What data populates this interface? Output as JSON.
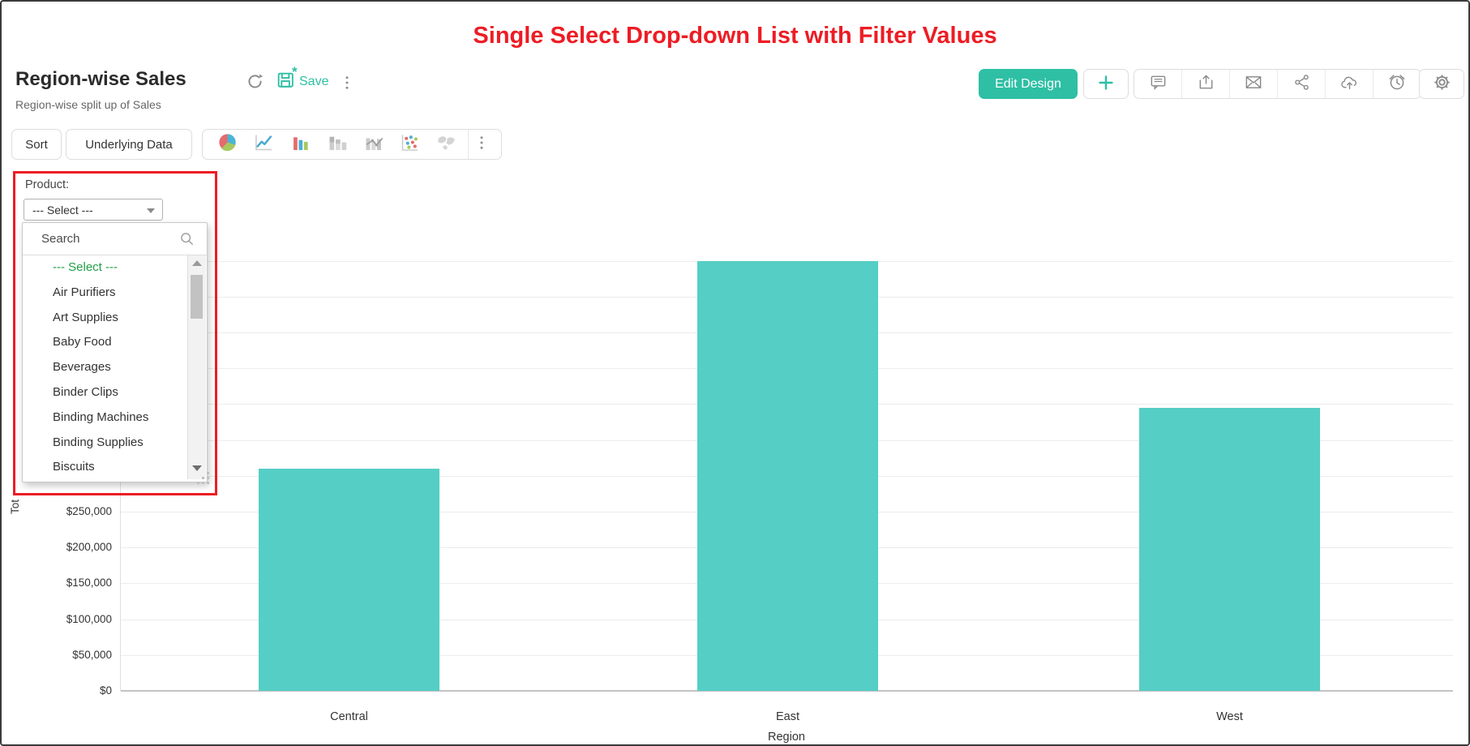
{
  "page_title": "Single Select Drop-down List with Filter Values",
  "header": {
    "title": "Region-wise Sales",
    "subtitle": "Region-wise split up of Sales",
    "save_label": "Save",
    "edit_design_label": "Edit Design",
    "action_icons": [
      "comment-icon",
      "export-icon",
      "mail-icon",
      "share-icon",
      "cloud-upload-icon",
      "alarm-icon"
    ]
  },
  "toolbar": {
    "sort_label": "Sort",
    "underlying_data_label": "Underlying Data",
    "chart_icons": [
      "pie-chart-icon",
      "line-chart-icon",
      "bar-chart-icon",
      "stacked-bar-chart-icon",
      "combo-chart-icon",
      "scatter-chart-icon",
      "map-chart-icon"
    ]
  },
  "filter": {
    "label": "Product:",
    "selected_value": "--- Select ---",
    "search_placeholder": "Search",
    "options": [
      "--- Select ---",
      "Air Purifiers",
      "Art Supplies",
      "Baby Food",
      "Beverages",
      "Binder Clips",
      "Binding Machines",
      "Binding Supplies",
      "Biscuits"
    ]
  },
  "colors": {
    "annotation_red": "#ed1c24",
    "accent_teal": "#2ebfa4",
    "bar_teal": "#55cec5",
    "selected_option_green": "#1f9e46"
  },
  "chart_data": {
    "type": "bar",
    "categories": [
      "Central",
      "East",
      "West"
    ],
    "values": [
      310000,
      600000,
      395000
    ],
    "xlabel": "Region",
    "ylabel_visible": "Tot",
    "yticks": [
      {
        "label": "$0",
        "value": 0
      },
      {
        "label": "$50,000",
        "value": 50000
      },
      {
        "label": "$100,000",
        "value": 100000
      },
      {
        "label": "$150,000",
        "value": 150000
      },
      {
        "label": "$200,000",
        "value": 200000
      },
      {
        "label": "$250,000",
        "value": 250000
      }
    ],
    "ylim": [
      0,
      620000
    ],
    "gridline_step": 50000,
    "gridline_max": 600000,
    "grid": true,
    "legend": "none",
    "bar_color": "#55cec5"
  }
}
